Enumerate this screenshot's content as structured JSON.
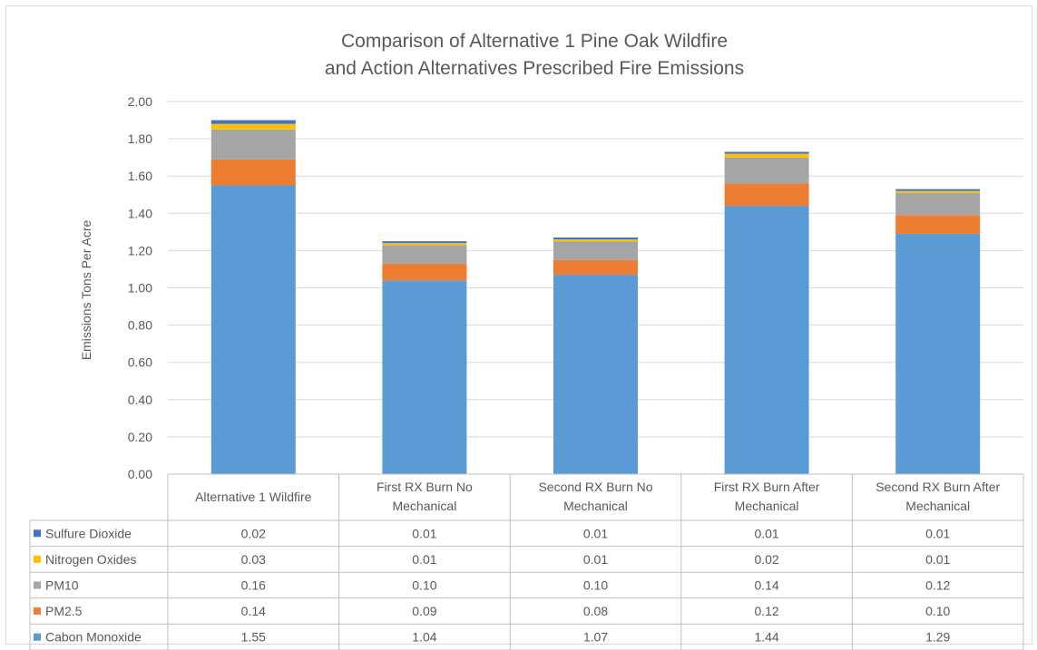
{
  "chart_data": {
    "type": "bar",
    "stacked": true,
    "title": "Comparison of Alternative 1 Pine Oak Wildfire and Action Alternatives Prescribed Fire Emissions",
    "title_lines": [
      "Comparison of Alternative 1 Pine Oak Wildfire",
      "and Action Alternatives Prescribed Fire Emissions"
    ],
    "ylabel": "Emissions Tons Per Acre",
    "xlabel": "",
    "ylim": [
      0,
      2.0
    ],
    "y_ticks": [
      "0.00",
      "0.20",
      "0.40",
      "0.60",
      "0.80",
      "1.00",
      "1.20",
      "1.40",
      "1.60",
      "1.80",
      "2.00"
    ],
    "grid": true,
    "legend_placement": "data-table",
    "categories": [
      [
        "Alternative 1 Wildfire"
      ],
      [
        "First RX Burn No",
        "Mechanical"
      ],
      [
        "Second RX Burn No",
        "Mechanical"
      ],
      [
        "First RX Burn After",
        "Mechanical"
      ],
      [
        "Second RX Burn After",
        "Mechanical"
      ]
    ],
    "series": [
      {
        "name": "Cabon Monoxide",
        "color": "#5b9bd5",
        "values": [
          1.55,
          1.04,
          1.07,
          1.44,
          1.29
        ],
        "labels": [
          "1.55",
          "1.04",
          "1.07",
          "1.44",
          "1.29"
        ]
      },
      {
        "name": "PM2.5",
        "color": "#ed7d31",
        "values": [
          0.14,
          0.09,
          0.08,
          0.12,
          0.1
        ],
        "labels": [
          "0.14",
          "0.09",
          "0.08",
          "0.12",
          "0.10"
        ]
      },
      {
        "name": "PM10",
        "color": "#a5a5a5",
        "values": [
          0.16,
          0.1,
          0.1,
          0.14,
          0.12
        ],
        "labels": [
          "0.16",
          "0.10",
          "0.10",
          "0.14",
          "0.12"
        ]
      },
      {
        "name": "Nitrogen Oxides",
        "color": "#ffc000",
        "values": [
          0.03,
          0.01,
          0.01,
          0.02,
          0.01
        ],
        "labels": [
          "0.03",
          "0.01",
          "0.01",
          "0.02",
          "0.01"
        ]
      },
      {
        "name": "Sulfure Dioxide",
        "color": "#4472c4",
        "values": [
          0.02,
          0.01,
          0.01,
          0.01,
          0.01
        ],
        "labels": [
          "0.02",
          "0.01",
          "0.01",
          "0.01",
          "0.01"
        ]
      }
    ],
    "table_row_order": [
      "Sulfure Dioxide",
      "Nitrogen Oxides",
      "PM10",
      "PM2.5",
      "Cabon Monoxide"
    ]
  }
}
